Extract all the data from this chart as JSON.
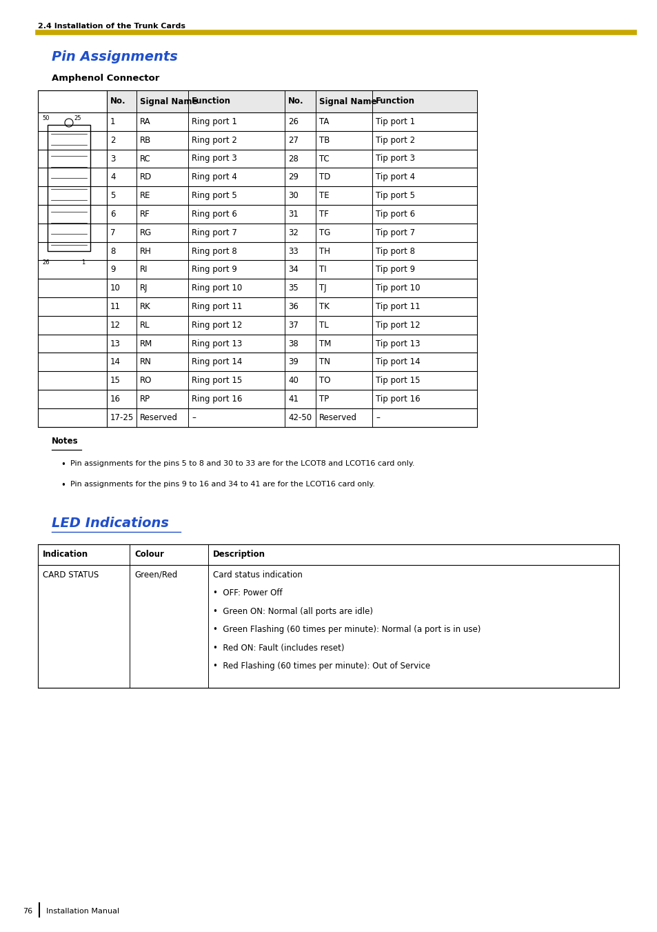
{
  "page_header": "2.4 Installation of the Trunk Cards",
  "header_line_color": "#C8A800",
  "section1_title": "Pin Assignments",
  "section1_title_color": "#1F4FCC",
  "subsection1_title": "Amphenol Connector",
  "pin_table_headers": [
    "No.",
    "Signal Name",
    "Function",
    "No.",
    "Signal Name",
    "Function"
  ],
  "pin_table_rows": [
    [
      "1",
      "RA",
      "Ring port 1",
      "26",
      "TA",
      "Tip port 1"
    ],
    [
      "2",
      "RB",
      "Ring port 2",
      "27",
      "TB",
      "Tip port 2"
    ],
    [
      "3",
      "RC",
      "Ring port 3",
      "28",
      "TC",
      "Tip port 3"
    ],
    [
      "4",
      "RD",
      "Ring port 4",
      "29",
      "TD",
      "Tip port 4"
    ],
    [
      "5",
      "RE",
      "Ring port 5",
      "30",
      "TE",
      "Tip port 5"
    ],
    [
      "6",
      "RF",
      "Ring port 6",
      "31",
      "TF",
      "Tip port 6"
    ],
    [
      "7",
      "RG",
      "Ring port 7",
      "32",
      "TG",
      "Tip port 7"
    ],
    [
      "8",
      "RH",
      "Ring port 8",
      "33",
      "TH",
      "Tip port 8"
    ],
    [
      "9",
      "RI",
      "Ring port 9",
      "34",
      "TI",
      "Tip port 9"
    ],
    [
      "10",
      "RJ",
      "Ring port 10",
      "35",
      "TJ",
      "Tip port 10"
    ],
    [
      "11",
      "RK",
      "Ring port 11",
      "36",
      "TK",
      "Tip port 11"
    ],
    [
      "12",
      "RL",
      "Ring port 12",
      "37",
      "TL",
      "Tip port 12"
    ],
    [
      "13",
      "RM",
      "Ring port 13",
      "38",
      "TM",
      "Tip port 13"
    ],
    [
      "14",
      "RN",
      "Ring port 14",
      "39",
      "TN",
      "Tip port 14"
    ],
    [
      "15",
      "RO",
      "Ring port 15",
      "40",
      "TO",
      "Tip port 15"
    ],
    [
      "16",
      "RP",
      "Ring port 16",
      "41",
      "TP",
      "Tip port 16"
    ],
    [
      "17-25",
      "Reserved",
      "–",
      "42-50",
      "Reserved",
      "–"
    ]
  ],
  "notes_title": "Notes",
  "notes": [
    "Pin assignments for the pins 5 to 8 and 30 to 33 are for the LCOT8 and LCOT16 card only.",
    "Pin assignments for the pins 9 to 16 and 34 to 41 are for the LCOT16 card only."
  ],
  "section2_title": "LED Indications",
  "section2_title_color": "#1F4FCC",
  "led_table_headers": [
    "Indication",
    "Colour",
    "Description"
  ],
  "led_desc_lines": [
    "Card status indication",
    "•  OFF: Power Off",
    "•  Green ON: Normal (all ports are idle)",
    "•  Green Flashing (60 times per minute): Normal (a port is in use)",
    "•  Red ON: Fault (includes reset)",
    "•  Red Flashing (60 times per minute): Out of Service"
  ],
  "led_indication": "CARD STATUS",
  "led_colour": "Green/Red",
  "footer_page": "76",
  "footer_text": "Installation Manual",
  "bg_color": "#FFFFFF",
  "text_color": "#000000",
  "header_bg_color": "#E8E8E8"
}
